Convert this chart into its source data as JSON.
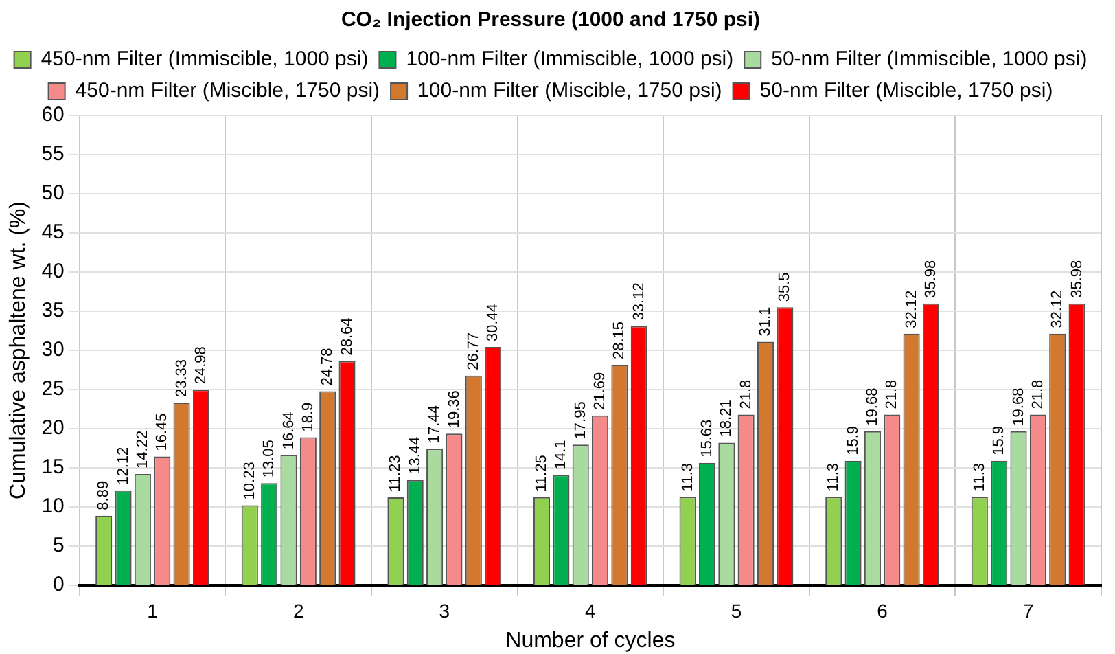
{
  "chart_data": {
    "type": "bar",
    "title": "CO₂ Injection Pressure (1000 and 1750 psi)",
    "xlabel": "Number of cycles",
    "ylabel": "Cumulative asphaltene wt. (%)",
    "categories": [
      "1",
      "2",
      "3",
      "4",
      "5",
      "6",
      "7"
    ],
    "series": [
      {
        "name": "450-nm Filter (Immiscible, 1000 psi)",
        "color": "#92d050",
        "values": [
          8.89,
          10.23,
          11.23,
          11.25,
          11.3,
          11.3,
          11.3
        ]
      },
      {
        "name": "100-nm Filter (Immiscible, 1000 psi)",
        "color": "#00b050",
        "values": [
          12.12,
          13.05,
          13.44,
          14.1,
          15.63,
          15.9,
          15.9
        ]
      },
      {
        "name": "50-nm Filter (Immiscible, 1000 psi)",
        "color": "#a9dba0",
        "values": [
          14.22,
          16.64,
          17.44,
          17.95,
          18.21,
          19.68,
          19.68
        ]
      },
      {
        "name": "450-nm Filter (Miscible, 1750 psi)",
        "color": "#f58a8a",
        "values": [
          16.45,
          18.9,
          19.36,
          21.69,
          21.8,
          21.8,
          21.8
        ]
      },
      {
        "name": "100-nm Filter (Miscible, 1750 psi)",
        "color": "#d2782f",
        "values": [
          23.33,
          24.78,
          26.77,
          28.15,
          31.1,
          32.12,
          32.12
        ]
      },
      {
        "name": "50-nm Filter (Miscible, 1750 psi)",
        "color": "#ff0000",
        "values": [
          24.98,
          28.64,
          30.44,
          33.12,
          35.5,
          35.98,
          35.98
        ]
      }
    ],
    "ylim": [
      0,
      60
    ],
    "yticks": [
      0,
      5,
      10,
      15,
      20,
      25,
      30,
      35,
      40,
      45,
      50,
      55,
      60
    ],
    "grid": true,
    "legend": "top",
    "data_labels": true
  }
}
